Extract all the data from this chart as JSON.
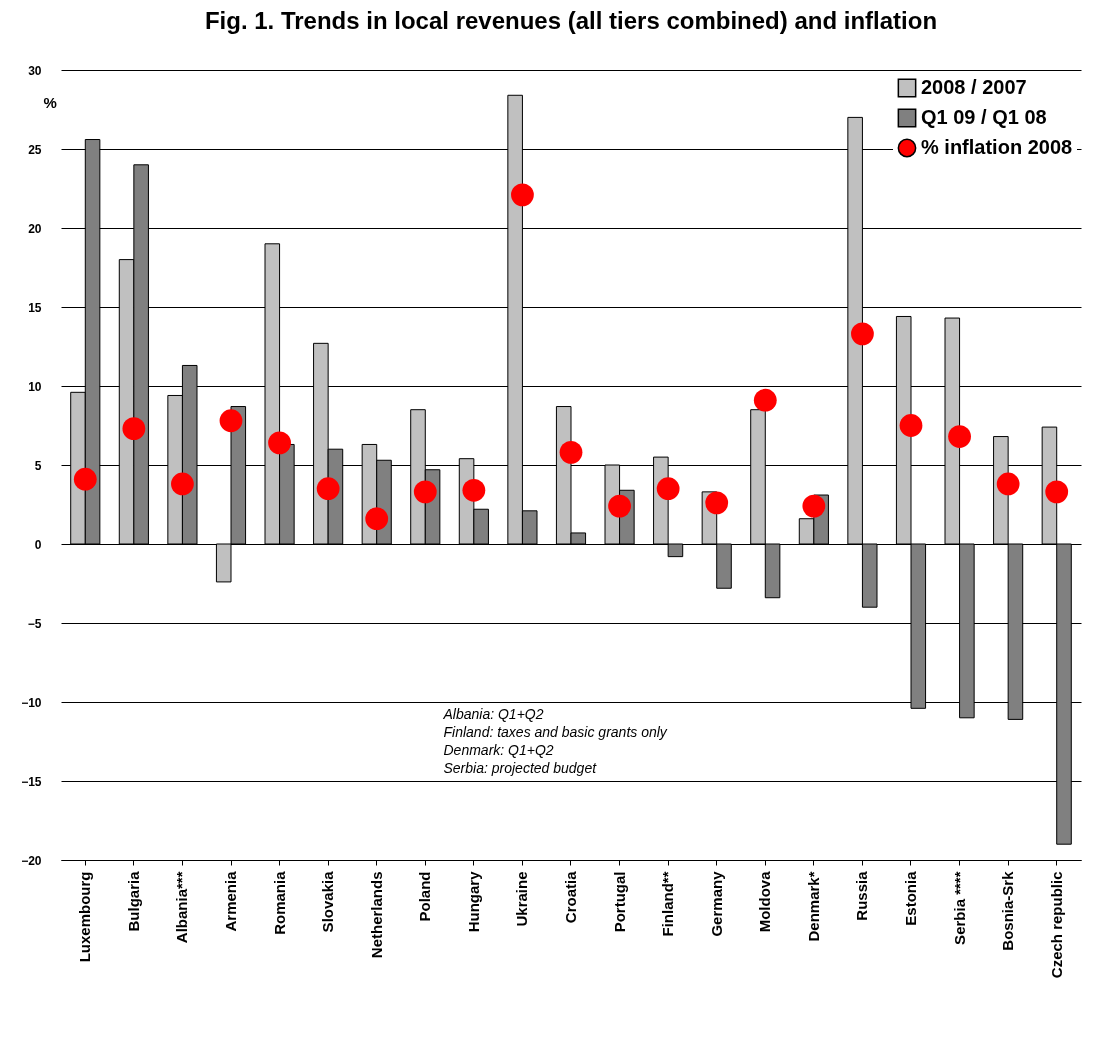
{
  "chart_data": {
    "type": "bar",
    "title": "Fig. 1. Trends in local revenues (all tiers combined) and inflation",
    "ylabel": "%",
    "categories": [
      "Luxembourg",
      "Bulgaria",
      "Albania***",
      "Armenia",
      "Romania",
      "Slovakia",
      "Netherlands",
      "Poland",
      "Hungary",
      "Ukraine",
      "Croatia",
      "Portugal",
      "Finland**",
      "Germany",
      "Moldova",
      "Denmark*",
      "Russia",
      "Estonia",
      "Serbia ****",
      "Bosnia-Srk",
      "Czech republic"
    ],
    "series": [
      {
        "name": "2008 / 2007",
        "color": "#c0c0c0",
        "values": [
          9.6,
          18.0,
          9.4,
          -2.4,
          19.0,
          12.7,
          6.3,
          8.5,
          5.4,
          28.4,
          8.7,
          5.0,
          5.5,
          3.3,
          8.5,
          1.6,
          27.0,
          14.4,
          14.3,
          6.8,
          7.4
        ]
      },
      {
        "name": "Q1 09 / Q1 08",
        "color": "#808080",
        "values": [
          25.6,
          24.0,
          11.3,
          8.7,
          6.3,
          6.0,
          5.3,
          4.7,
          2.2,
          2.1,
          0.7,
          3.4,
          -0.8,
          -2.8,
          -3.4,
          3.1,
          -4.0,
          -10.4,
          -11.0,
          -11.1,
          -19.0
        ]
      },
      {
        "name": "% inflation 2008",
        "type": "scatter",
        "color": "#ff0000",
        "values": [
          4.1,
          7.3,
          3.8,
          7.8,
          6.4,
          3.5,
          1.6,
          3.3,
          3.4,
          22.1,
          5.8,
          2.4,
          3.5,
          2.6,
          9.1,
          2.4,
          13.3,
          7.5,
          6.8,
          3.8,
          3.3
        ]
      }
    ],
    "ylim": [
      -20,
      30
    ],
    "yticks": [
      -20,
      -15,
      -10,
      -5,
      0,
      5,
      10,
      15,
      20,
      25,
      30
    ],
    "grid": "y",
    "legend": "top right",
    "marker": "circle",
    "annotations": [
      "Albania: Q1+Q2",
      "Finland: taxes and basic grants only",
      "Denmark: Q1+Q2",
      "Serbia: projected budget"
    ]
  }
}
